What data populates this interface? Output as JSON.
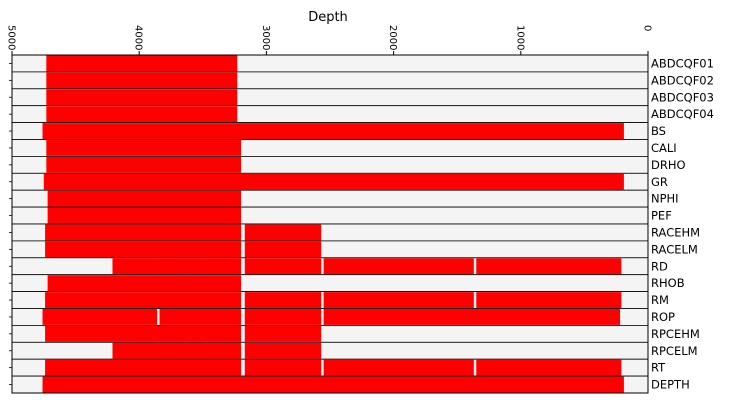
{
  "chart_data": {
    "type": "bar",
    "orientation": "horizontal-ranges",
    "title": "Depth",
    "x_axis": {
      "position": "top",
      "reversed": true,
      "xlim": [
        5000,
        0
      ],
      "ticks": [
        {
          "value": 5000,
          "label": "5000"
        },
        {
          "value": 4000,
          "label": "4000"
        },
        {
          "value": 3000,
          "label": "3000"
        },
        {
          "value": 2000,
          "label": "2000"
        },
        {
          "value": 1000,
          "label": "1000"
        },
        {
          "value": 0,
          "label": "0"
        }
      ]
    },
    "colors": {
      "coverage": "#ff0000",
      "row_background": "#f4f4f4",
      "row_border": "#000000",
      "gap": "#ffffff"
    },
    "rows": [
      {
        "label": "ABDCQF01",
        "segments": [
          [
            3220,
            4730
          ]
        ]
      },
      {
        "label": "ABDCQF02",
        "segments": [
          [
            3220,
            4730
          ]
        ]
      },
      {
        "label": "ABDCQF03",
        "segments": [
          [
            3220,
            4730
          ]
        ]
      },
      {
        "label": "ABDCQF04",
        "segments": [
          [
            3220,
            4730
          ]
        ]
      },
      {
        "label": "BS",
        "segments": [
          [
            180,
            4760
          ]
        ]
      },
      {
        "label": "CALI",
        "segments": [
          [
            3190,
            4730
          ]
        ]
      },
      {
        "label": "DRHO",
        "segments": [
          [
            3190,
            4730
          ]
        ]
      },
      {
        "label": "GR",
        "segments": [
          [
            180,
            4750
          ]
        ]
      },
      {
        "label": "NPHI",
        "segments": [
          [
            3190,
            4720
          ]
        ]
      },
      {
        "label": "PEF",
        "segments": [
          [
            3190,
            4720
          ]
        ]
      },
      {
        "label": "RACEHM",
        "segments": [
          [
            3190,
            4740
          ],
          [
            2560,
            3170
          ]
        ]
      },
      {
        "label": "RACELM",
        "segments": [
          [
            3190,
            4740
          ],
          [
            2560,
            3170
          ]
        ]
      },
      {
        "label": "RD",
        "segments": [
          [
            3190,
            4210
          ],
          [
            4200,
            4070
          ],
          [
            4060,
            3850
          ],
          [
            3840,
            3640
          ],
          [
            3630,
            3470
          ],
          [
            3460,
            3190
          ],
          [
            2560,
            3170
          ],
          [
            1360,
            2550
          ],
          [
            200,
            1350
          ]
        ]
      },
      {
        "label": "RHOB",
        "segments": [
          [
            3190,
            4720
          ]
        ]
      },
      {
        "label": "RM",
        "segments": [
          [
            3190,
            4740
          ],
          [
            2560,
            3170
          ],
          [
            1360,
            2550
          ],
          [
            200,
            1350
          ]
        ]
      },
      {
        "label": "ROP",
        "segments": [
          [
            3850,
            4760
          ],
          [
            3190,
            3840
          ],
          [
            2560,
            3170
          ],
          [
            210,
            2550
          ]
        ]
      },
      {
        "label": "RPCEHM",
        "segments": [
          [
            3190,
            4740
          ],
          [
            2560,
            3170
          ]
        ]
      },
      {
        "label": "RPCELM",
        "segments": [
          [
            3190,
            4210
          ],
          [
            4200,
            4070
          ],
          [
            4060,
            3850
          ],
          [
            3840,
            3640
          ],
          [
            3630,
            3470
          ],
          [
            3460,
            3190
          ],
          [
            2560,
            3170
          ]
        ]
      },
      {
        "label": "RT",
        "segments": [
          [
            3190,
            4740
          ],
          [
            2560,
            3170
          ],
          [
            1360,
            2550
          ],
          [
            200,
            1350
          ]
        ]
      },
      {
        "label": "DEPTH",
        "segments": [
          [
            180,
            4760
          ]
        ]
      }
    ]
  }
}
